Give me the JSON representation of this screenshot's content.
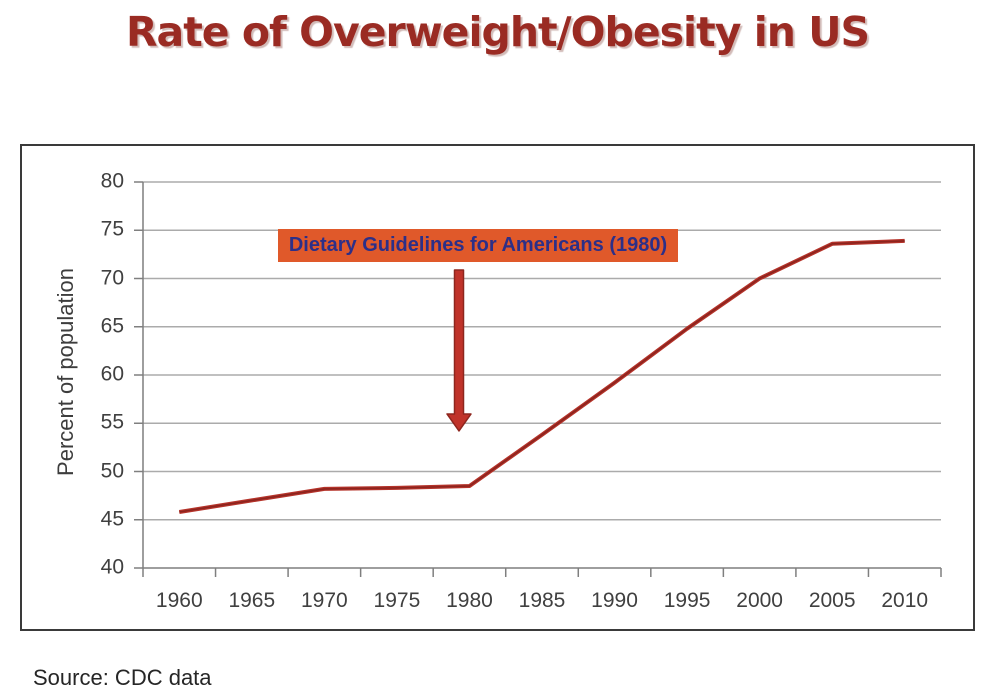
{
  "page": {
    "title": "Rate of Overweight/Obesity in US",
    "source_note": "Source: CDC data"
  },
  "colors": {
    "title_color": "#9a2b23",
    "frame_border": "#3a3a3a",
    "line_color": "#b5332a",
    "line_core": "#8c241e",
    "arrow_fill": "#c0332a",
    "arrow_stroke": "#8e261e",
    "annotation_bg": "#e0592a",
    "annotation_text": "#2c2f88",
    "grid_color": "#ababab",
    "axis_color": "#7f7f7f",
    "tick_text": "#404040"
  },
  "chart_data": {
    "type": "line",
    "title": "Rate of Overweight/Obesity in US",
    "categories": [
      "1960",
      "1965",
      "1970",
      "1975",
      "1980",
      "1985",
      "1990",
      "1995",
      "2000",
      "2005",
      "2010"
    ],
    "values": [
      45.8,
      47.0,
      48.2,
      48.3,
      48.5,
      53.8,
      59.2,
      64.8,
      70.0,
      73.6,
      73.9
    ],
    "xlabel": "",
    "ylabel": "Percent of population",
    "ylim": [
      40,
      80
    ],
    "yticks": [
      40,
      45,
      50,
      55,
      60,
      65,
      70,
      75,
      80
    ],
    "grid": "horizontal",
    "legend": "none",
    "annotation": {
      "label": "Dietary Guidelines for Americans (1980)",
      "arrow_points_to_year": "1980",
      "arrow_tip_value": 54.2
    }
  }
}
